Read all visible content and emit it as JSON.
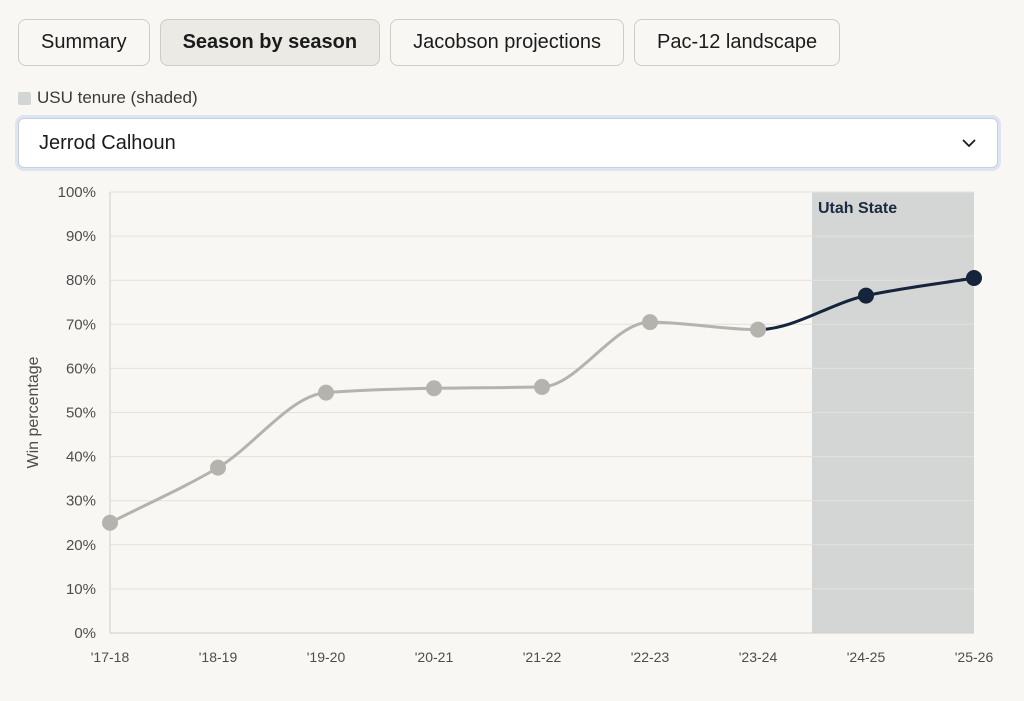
{
  "tabs": [
    {
      "label": "Summary",
      "active": false
    },
    {
      "label": "Season by season",
      "active": true
    },
    {
      "label": "Jacobson projections",
      "active": false
    },
    {
      "label": "Pac-12 landscape",
      "active": false
    }
  ],
  "legend": {
    "label": "USU tenure (shaded)",
    "swatch_color": "#d4d6d5"
  },
  "coach_select": {
    "selected": "Jerrod Calhoun"
  },
  "chart_data": {
    "type": "line",
    "ylabel": "Win percentage",
    "xlabel": "",
    "ylim": [
      0,
      100
    ],
    "y_ticks": [
      "0%",
      "10%",
      "20%",
      "30%",
      "40%",
      "50%",
      "60%",
      "70%",
      "80%",
      "90%",
      "100%"
    ],
    "categories": [
      "'17-18",
      "'18-19",
      "'19-20",
      "'20-21",
      "'21-22",
      "'22-23",
      "'23-24",
      "'24-25",
      "'25-26"
    ],
    "values": [
      25,
      37.5,
      54.5,
      55.5,
      55.8,
      70.5,
      68.8,
      76.5,
      80.5
    ],
    "highlight_band": {
      "label": "Utah State",
      "from_category": "'24-25",
      "to_category": "'25-26",
      "color": "#d4d6d5"
    },
    "colors": {
      "pre_tenure": "#b5b3ad",
      "tenure": "#15243a"
    },
    "grid": true
  }
}
